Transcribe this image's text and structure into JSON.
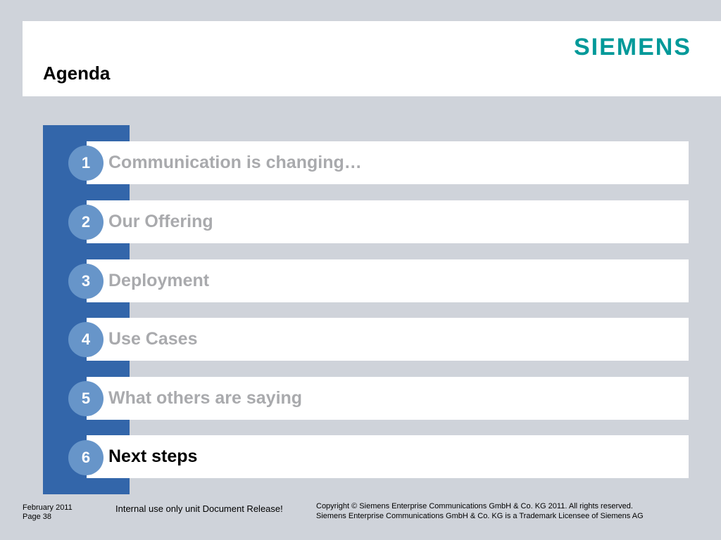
{
  "header": {
    "title": "Agenda",
    "logo_text": "SIEMENS"
  },
  "agenda": {
    "items": [
      {
        "number": "1",
        "label": "Communication is changing…",
        "active": false
      },
      {
        "number": "2",
        "label": "Our Offering",
        "active": false
      },
      {
        "number": "3",
        "label": "Deployment",
        "active": false
      },
      {
        "number": "4",
        "label": "Use Cases",
        "active": false
      },
      {
        "number": "5",
        "label": "What others are saying",
        "active": false
      },
      {
        "number": "6",
        "label": "Next steps",
        "active": true
      }
    ]
  },
  "footer": {
    "date": "February 2011",
    "page": "Page 38",
    "note": "Internal use only unit Document Release!",
    "copyright": "Copyright © Siemens Enterprise Communications GmbH & Co. KG 2011. All rights reserved.",
    "trademark": "Siemens Enterprise Communications GmbH & Co. KG is a Trademark Licensee of Siemens AG"
  },
  "colors": {
    "background": "#cfd3da",
    "accent_blue": "#3366aa",
    "number_circle": "#6795c9",
    "inactive_text": "#a9aaad",
    "logo": "#009999"
  }
}
